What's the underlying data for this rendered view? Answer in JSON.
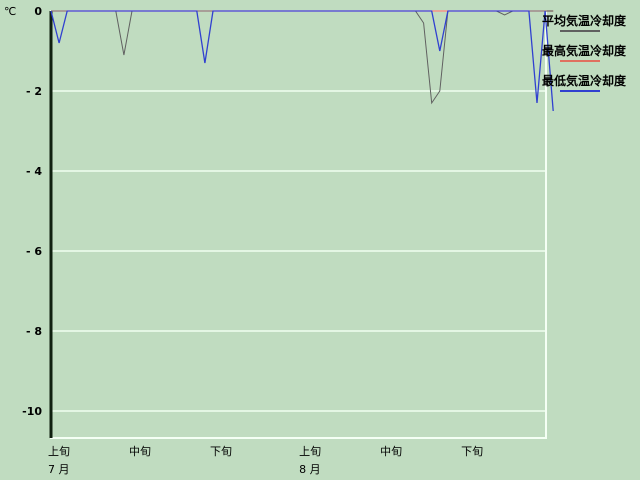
{
  "chart_data": {
    "type": "line",
    "unit_label": "℃",
    "ylim": [
      -10.7,
      0
    ],
    "yticks": [
      0,
      -2,
      -4,
      -6,
      -8,
      -10
    ],
    "ytick_labels": [
      "0",
      "- 2",
      "- 4",
      "- 6",
      "- 8",
      "-10"
    ],
    "grid": true,
    "legend_position": "top-right",
    "x": [
      "7/1",
      "7/2",
      "7/3",
      "7/4",
      "7/5",
      "7/6",
      "7/7",
      "7/8",
      "7/9",
      "7/10",
      "7/11",
      "7/12",
      "7/13",
      "7/14",
      "7/15",
      "7/16",
      "7/17",
      "7/18",
      "7/19",
      "7/20",
      "7/21",
      "7/22",
      "7/23",
      "7/24",
      "7/25",
      "7/26",
      "7/27",
      "7/28",
      "7/29",
      "7/30",
      "7/31",
      "8/1",
      "8/2",
      "8/3",
      "8/4",
      "8/5",
      "8/6",
      "8/7",
      "8/8",
      "8/9",
      "8/10",
      "8/11",
      "8/12",
      "8/13",
      "8/14",
      "8/15",
      "8/16",
      "8/17",
      "8/18",
      "8/19",
      "8/20",
      "8/21",
      "8/22",
      "8/23",
      "8/24",
      "8/25",
      "8/26",
      "8/27",
      "8/28",
      "8/29",
      "8/30",
      "8/31",
      "9/1"
    ],
    "xticks": [
      {
        "at": "7/1",
        "label": "上旬"
      },
      {
        "at": "7/11",
        "label": "中旬"
      },
      {
        "at": "7/21",
        "label": "下旬"
      },
      {
        "at": "8/1",
        "label": "上旬"
      },
      {
        "at": "8/11",
        "label": "中旬"
      },
      {
        "at": "8/21",
        "label": "下旬"
      }
    ],
    "month_labels": [
      {
        "at": "7/1",
        "label": "7 月"
      },
      {
        "at": "8/1",
        "label": "8 月"
      }
    ],
    "series": [
      {
        "name": "平均気温冷却度",
        "color": "#606060",
        "values": [
          0,
          0,
          0,
          0,
          0,
          0,
          0,
          0,
          0,
          -1.1,
          0,
          0,
          0,
          0,
          0,
          0,
          0,
          0,
          0,
          0,
          0,
          0,
          0,
          0,
          0,
          0,
          0,
          0,
          0,
          0,
          0,
          0,
          0,
          0,
          0,
          0,
          0,
          0,
          0,
          0,
          0,
          0,
          0,
          0,
          0,
          0,
          -0.3,
          -2.3,
          -2.0,
          0,
          0,
          0,
          0,
          0,
          0,
          0,
          -0.1,
          0,
          0,
          0,
          0,
          0,
          0
        ]
      },
      {
        "name": "最高気温冷却度",
        "color": "#e07060",
        "values": [
          0,
          0,
          0,
          0,
          0,
          0,
          0,
          0,
          0,
          0,
          0,
          0,
          0,
          0,
          0,
          0,
          0,
          0,
          0,
          0,
          0,
          0,
          0,
          0,
          0,
          0,
          0,
          0,
          0,
          0,
          0,
          0,
          0,
          0,
          0,
          0,
          0,
          0,
          0,
          0,
          0,
          0,
          0,
          0,
          0,
          0,
          0,
          0,
          0,
          0,
          0,
          0,
          0,
          0,
          0,
          0,
          0,
          0,
          0,
          0,
          0,
          0,
          0
        ]
      },
      {
        "name": "最低気温冷却度",
        "color": "#3040d0",
        "values": [
          0,
          -0.8,
          0,
          0,
          0,
          0,
          0,
          0,
          0,
          0,
          0,
          0,
          0,
          0,
          0,
          0,
          0,
          0,
          0,
          -1.3,
          0,
          0,
          0,
          0,
          0,
          0,
          0,
          0,
          0,
          0,
          0,
          0,
          0,
          0,
          0,
          0,
          0,
          0,
          0,
          0,
          0,
          0,
          0,
          0,
          0,
          0,
          0,
          0,
          -1.0,
          0,
          0,
          0,
          0,
          0,
          0,
          0,
          0,
          0,
          0,
          0,
          -2.3,
          0,
          -2.5
        ]
      }
    ]
  }
}
